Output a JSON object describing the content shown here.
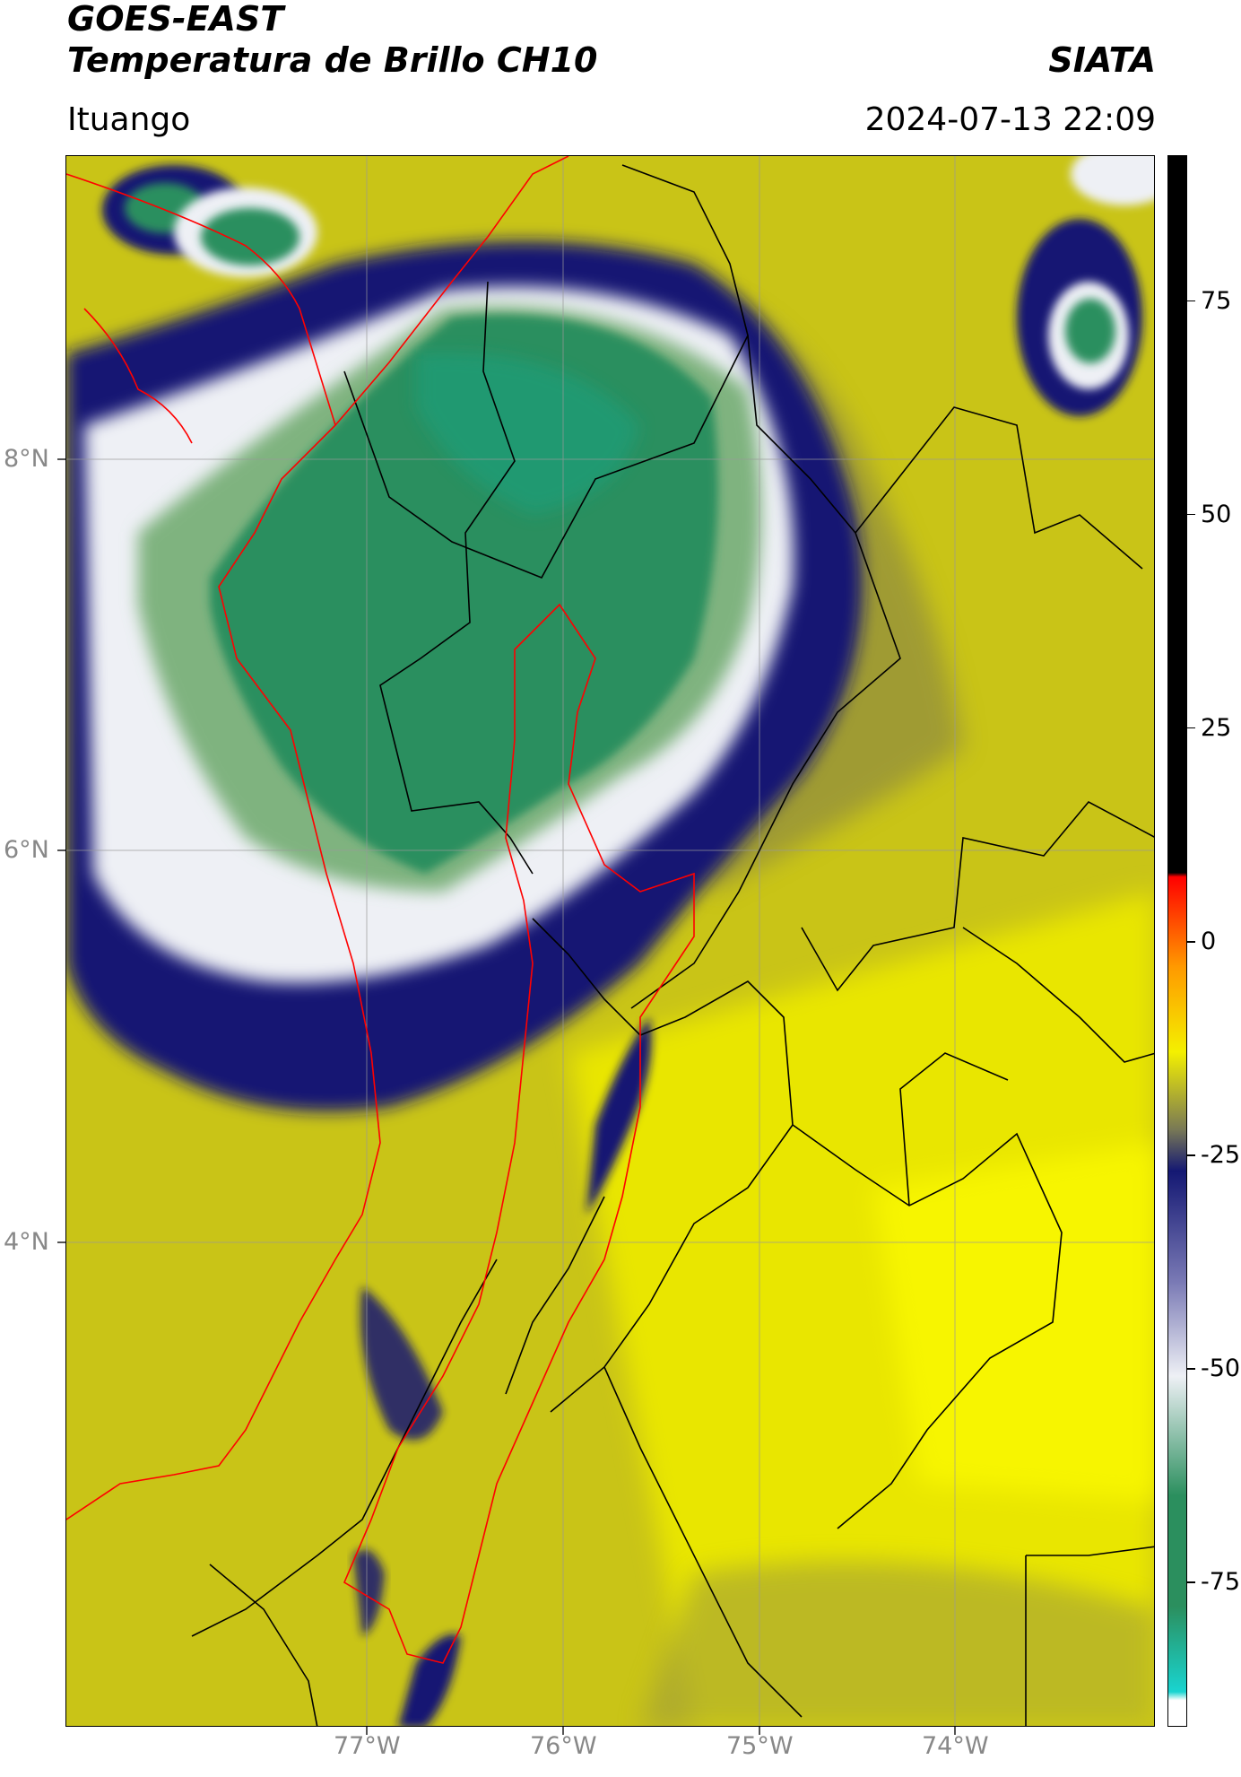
{
  "header": {
    "title_line1": "GOES-EAST",
    "title_line2": "Temperatura de Brillo CH10",
    "brand": "SIATA",
    "region": "Ituango",
    "timestamp": "2024-07-13 22:09"
  },
  "map_axes": {
    "latitude_labels": [
      "8°N",
      "6°N",
      "4°N"
    ],
    "longitude_labels": [
      "77°W",
      "76°W",
      "75°W",
      "74°W"
    ]
  },
  "colorbar": {
    "tick_labels": [
      "75",
      "50",
      "25",
      "0",
      "-25",
      "-50",
      "-75"
    ],
    "range": [
      -92,
      92
    ],
    "colors": {
      "cold_cyan": "#19d4d0",
      "cloud_green": "#2b8f5e",
      "cold_white": "#eef0f5",
      "deep_blue": "#141873",
      "mid_olive": "#7a7a55",
      "warm_yellow": "#f4f000",
      "warm_orange": "#ff9900",
      "hot_red": "#ff0000",
      "max_black": "#000000"
    }
  },
  "map_layers": {
    "department_borders": "#000000",
    "highlight_boundary": "#ff0000",
    "gridlines": "#999999"
  }
}
